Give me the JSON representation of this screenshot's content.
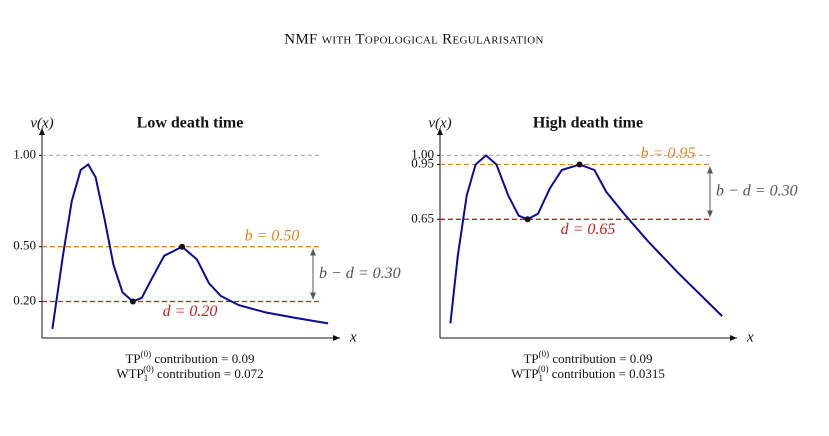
{
  "title": "NMF with Topological Regularisation",
  "chart_data": [
    {
      "type": "line",
      "title": "Low death time",
      "ylabel": "v(x)",
      "xlabel": "x",
      "xlim": [
        0,
        10
      ],
      "ylim": [
        0,
        1.15
      ],
      "yticks": [
        {
          "value": 0.2,
          "label": "0.20"
        },
        {
          "value": 0.5,
          "label": "0.50"
        },
        {
          "value": 1.0,
          "label": "1.00"
        }
      ],
      "x": [
        0.35,
        0.7,
        1.0,
        1.3,
        1.55,
        1.8,
        2.1,
        2.4,
        2.7,
        3.05,
        3.35,
        3.7,
        4.1,
        4.7,
        5.2,
        5.6,
        6.0,
        6.6,
        7.5,
        8.5,
        9.6
      ],
      "series": [
        {
          "color": "#0b0b96",
          "values": [
            0.05,
            0.45,
            0.75,
            0.92,
            0.95,
            0.88,
            0.65,
            0.4,
            0.25,
            0.2,
            0.22,
            0.33,
            0.45,
            0.5,
            0.43,
            0.3,
            0.23,
            0.18,
            0.14,
            0.11,
            0.08
          ]
        }
      ],
      "critical_points": {
        "x": [
          3.05,
          4.7
        ],
        "y": [
          0.2,
          0.5
        ]
      },
      "thresholds": [
        {
          "label": "b = 0.50",
          "value": 0.5,
          "color": "#e0861a"
        },
        {
          "label": "d = 0.20",
          "value": 0.2,
          "color": "#c81e1e"
        }
      ],
      "gap": {
        "label": "b − d = 0.30",
        "value": 0.3
      },
      "notes": [
        [
          {
            "text": "TP"
          },
          {
            "sup": "(0)"
          },
          {
            "text": " contribution = 0.09"
          }
        ],
        [
          {
            "text": "WTP"
          },
          {
            "sub": "1"
          },
          {
            "sup": "(0)"
          },
          {
            "text": " contribution = 0.072"
          }
        ]
      ]
    },
    {
      "type": "line",
      "title": "High death time",
      "ylabel": "v(x)",
      "xlabel": "x",
      "xlim": [
        0,
        10
      ],
      "ylim": [
        0,
        1.15
      ],
      "yticks": [
        {
          "value": 0.65,
          "label": "0.65"
        },
        {
          "value": 0.95,
          "label": "0.95"
        },
        {
          "value": 1.0,
          "label": "1.00"
        }
      ],
      "x": [
        0.35,
        0.6,
        0.9,
        1.2,
        1.55,
        1.9,
        2.3,
        2.65,
        2.95,
        3.3,
        3.7,
        4.1,
        4.7,
        5.2,
        5.6,
        6.2,
        7.0,
        8.0,
        9.5
      ],
      "series": [
        {
          "color": "#0b0b96",
          "values": [
            0.08,
            0.45,
            0.78,
            0.95,
            1.0,
            0.95,
            0.78,
            0.67,
            0.65,
            0.68,
            0.82,
            0.92,
            0.95,
            0.92,
            0.8,
            0.68,
            0.53,
            0.36,
            0.12
          ]
        }
      ],
      "critical_points": {
        "x": [
          2.95,
          4.7
        ],
        "y": [
          0.65,
          0.95
        ]
      },
      "thresholds": [
        {
          "label": "b = 0.95",
          "value": 0.95,
          "color": "#e0861a"
        },
        {
          "label": "d = 0.65",
          "value": 0.65,
          "color": "#c81e1e"
        }
      ],
      "gap": {
        "label": "b − d = 0.30",
        "value": 0.3
      },
      "notes": [
        [
          {
            "text": "TP"
          },
          {
            "sup": "(0)"
          },
          {
            "text": " contribution = 0.09"
          }
        ],
        [
          {
            "text": "WTP"
          },
          {
            "sub": "1"
          },
          {
            "sup": "(0)"
          },
          {
            "text": " contribution = 0.0315"
          }
        ]
      ]
    }
  ]
}
